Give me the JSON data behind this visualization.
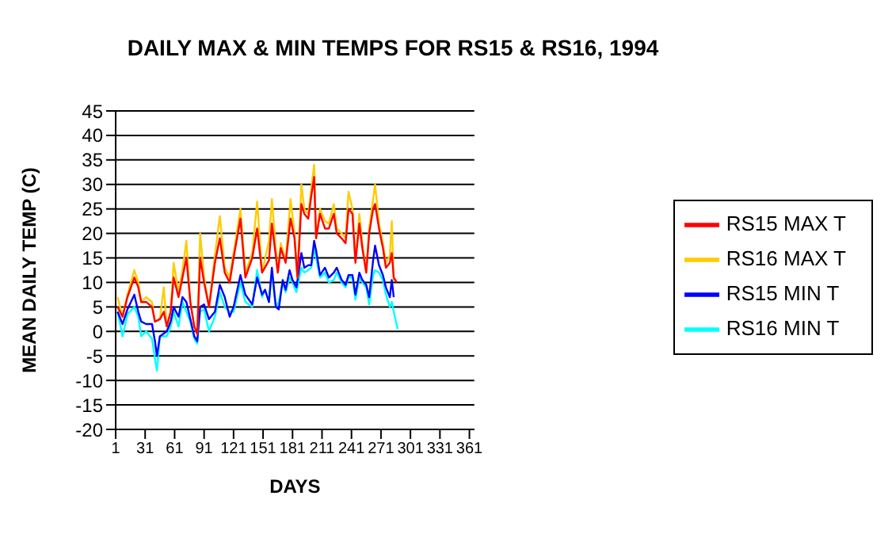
{
  "chart_data": {
    "type": "line",
    "title": "DAILY MAX & MIN TEMPS FOR RS15 & RS16, 1994",
    "xlabel": "DAYS",
    "ylabel": "MEAN DAILY TEMP (C)",
    "xlim": [
      1,
      366
    ],
    "xticks": [
      1,
      31,
      61,
      91,
      121,
      151,
      181,
      211,
      241,
      271,
      301,
      331,
      361
    ],
    "ylim": [
      -20,
      45
    ],
    "yticks": [
      -20,
      -15,
      -10,
      -5,
      0,
      5,
      10,
      15,
      20,
      25,
      30,
      35,
      40,
      45
    ],
    "grid": "y",
    "legend": "right",
    "series": [
      {
        "name": "RS15 MAX T",
        "color": "#ff0000",
        "x": [
          3,
          8,
          13,
          20,
          24,
          27,
          32,
          38,
          41,
          46,
          50,
          53,
          57,
          60,
          65,
          69,
          73,
          77,
          81,
          84,
          87,
          91,
          96,
          102,
          107,
          112,
          117,
          121,
          128,
          133,
          140,
          145,
          150,
          157,
          160,
          166,
          169,
          174,
          179,
          183,
          186,
          190,
          193,
          197,
          200,
          203,
          205,
          209,
          214,
          218,
          223,
          226,
          231,
          235,
          238,
          242,
          245,
          249,
          252,
          256,
          259,
          263,
          265,
          269,
          273,
          276,
          280,
          282,
          284,
          287
        ],
        "values": [
          5,
          3,
          7,
          11,
          9,
          6,
          6,
          5,
          2,
          2.5,
          4,
          1,
          4,
          11,
          7,
          11,
          15,
          6,
          1,
          -0.5,
          15,
          10,
          5,
          14,
          19,
          12,
          10,
          15,
          23,
          11,
          15,
          21,
          12,
          14.5,
          22,
          12,
          17,
          14,
          23,
          19,
          11,
          26,
          24,
          23,
          27.5,
          31.5,
          19,
          24,
          21,
          21,
          24,
          20,
          19,
          18,
          25,
          24,
          14,
          22,
          17,
          12,
          20,
          25,
          26,
          21,
          17,
          13,
          14,
          16,
          11,
          10
        ]
      },
      {
        "name": "RS16 MAX T",
        "color": "#ffcc00",
        "x": [
          3,
          8,
          13,
          20,
          24,
          27,
          32,
          38,
          41,
          46,
          50,
          53,
          57,
          60,
          65,
          69,
          73,
          77,
          81,
          84,
          87,
          91,
          96,
          102,
          107,
          112,
          117,
          121,
          128,
          133,
          140,
          145,
          150,
          157,
          160,
          166,
          169,
          174,
          179,
          183,
          186,
          190,
          193,
          197,
          200,
          203,
          205,
          209,
          214,
          218,
          223,
          226,
          231,
          235,
          238,
          242,
          245,
          249,
          252,
          256,
          259,
          263,
          265,
          269,
          273,
          276,
          280,
          282,
          284,
          287
        ],
        "values": [
          7,
          3,
          7.5,
          12.5,
          10,
          6,
          7,
          6,
          2,
          2.5,
          9,
          1,
          4,
          14,
          8,
          12.5,
          18.5,
          6,
          1,
          -0.5,
          20,
          11,
          5,
          15.5,
          23.5,
          13,
          11,
          16,
          25,
          12,
          16,
          26.5,
          12,
          18.5,
          27,
          12,
          18,
          14.5,
          27,
          20,
          11,
          30,
          25,
          24,
          29,
          34,
          19,
          25,
          22.5,
          22,
          26,
          21,
          20,
          19,
          28.5,
          25,
          14.5,
          24,
          18,
          12,
          21,
          27,
          30,
          22,
          18,
          14,
          15.5,
          22.5,
          10.5,
          10.5
        ]
      },
      {
        "name": "RS15 MIN T",
        "color": "#0000ff",
        "x": [
          3,
          8,
          13,
          20,
          24,
          27,
          32,
          38,
          41,
          43,
          46,
          53,
          57,
          60,
          65,
          69,
          73,
          77,
          81,
          84,
          87,
          91,
          96,
          102,
          107,
          112,
          117,
          121,
          128,
          133,
          140,
          145,
          150,
          153,
          157,
          160,
          164,
          167,
          171,
          174,
          178,
          181,
          185,
          190,
          193,
          197,
          200,
          203,
          205,
          209,
          214,
          218,
          223,
          226,
          231,
          235,
          238,
          242,
          245,
          249,
          252,
          256,
          259,
          263,
          265,
          269,
          273,
          276,
          280,
          282,
          284
        ],
        "values": [
          4,
          1.5,
          4.5,
          7.5,
          4,
          2,
          1.5,
          1.5,
          -2,
          -5,
          -1,
          0,
          2,
          5,
          3,
          7,
          6,
          2.5,
          -1,
          -2,
          5,
          5.5,
          2.5,
          4,
          9.5,
          7,
          3,
          5,
          11.5,
          7.5,
          5.5,
          11,
          7.5,
          8.5,
          6,
          13,
          5,
          4.5,
          10.5,
          8.5,
          12.5,
          10.5,
          9,
          16,
          13,
          13.5,
          13.5,
          18.5,
          16.5,
          11.5,
          13,
          11,
          12,
          13,
          10.5,
          9.5,
          11.5,
          11.5,
          7.5,
          12,
          10.5,
          9.5,
          7,
          14.5,
          17.5,
          13.5,
          11.5,
          9,
          7,
          10.5,
          7
        ]
      },
      {
        "name": "RS16 MIN T",
        "color": "#00ffff",
        "x": [
          3,
          8,
          13,
          20,
          24,
          27,
          32,
          38,
          41,
          43,
          46,
          53,
          57,
          60,
          65,
          69,
          73,
          77,
          81,
          84,
          87,
          91,
          96,
          102,
          107,
          112,
          117,
          121,
          128,
          133,
          140,
          145,
          150,
          153,
          157,
          160,
          164,
          167,
          171,
          174,
          178,
          181,
          185,
          190,
          193,
          197,
          200,
          203,
          205,
          209,
          214,
          218,
          223,
          226,
          231,
          235,
          238,
          242,
          245,
          249,
          252,
          256,
          259,
          263,
          265,
          269,
          273,
          276,
          280,
          282,
          284,
          288
        ],
        "values": [
          4,
          -1,
          3.5,
          5,
          3,
          -1,
          0,
          -1.5,
          -5.5,
          -8,
          -1,
          -1,
          1,
          4,
          1,
          6,
          4,
          2,
          -1.5,
          -2.5,
          4,
          4.5,
          0,
          3,
          8,
          5,
          4,
          4,
          10,
          6,
          5,
          12.5,
          7,
          8.5,
          6,
          12,
          5,
          6,
          10,
          8,
          11,
          10,
          8,
          13,
          12,
          12.5,
          13,
          17,
          15,
          11,
          12,
          10,
          10.5,
          12,
          10,
          9,
          11,
          11,
          6.5,
          11,
          10,
          9,
          5.5,
          11.5,
          12.5,
          12,
          10.5,
          7.5,
          5,
          6,
          4,
          0.5
        ]
      }
    ]
  }
}
